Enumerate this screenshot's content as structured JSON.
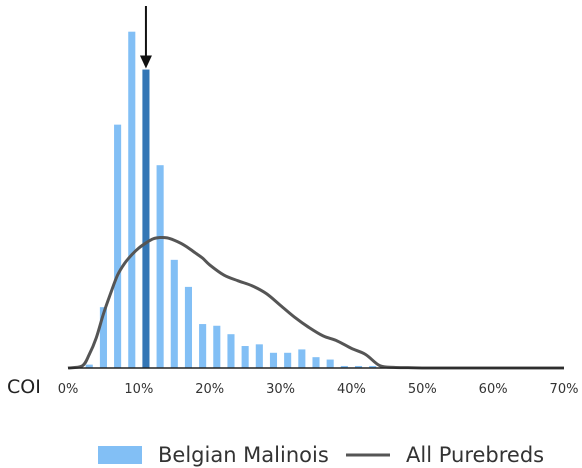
{
  "chart_data": {
    "type": "bar",
    "xlabel": "COI",
    "xlim": [
      0,
      70
    ],
    "x_ticks": [
      "0%",
      "10%",
      "20%",
      "30%",
      "40%",
      "50%",
      "60%",
      "70%"
    ],
    "bar_width": 1,
    "highlight_x": 11,
    "series": [
      {
        "name": "Belgian Malinois",
        "kind": "bar",
        "color": "#82bff5",
        "highlight_color": "#3476b5",
        "x": [
          3,
          5,
          7,
          9,
          11,
          13,
          15,
          17,
          19,
          21,
          23,
          25,
          27,
          29,
          31,
          33,
          35,
          37,
          39,
          41,
          43
        ],
        "values": [
          1.0,
          18.0,
          72.0,
          99.5,
          88.3,
          60.0,
          32.0,
          24.0,
          13.0,
          12.5,
          10.0,
          6.5,
          7.0,
          4.5,
          4.5,
          5.5,
          3.2,
          2.5,
          0.6,
          0.6,
          0.6
        ]
      },
      {
        "name": "All Purebreds",
        "kind": "line",
        "color": "#555555",
        "x": [
          0,
          2,
          3,
          4,
          5,
          6,
          7,
          8,
          9,
          10,
          11,
          12,
          13,
          14,
          15,
          16,
          17,
          18,
          19,
          20,
          22,
          24,
          26,
          28,
          30,
          32,
          34,
          36,
          38,
          40,
          42,
          44,
          46,
          48,
          50,
          55,
          60,
          65,
          70
        ],
        "values": [
          0,
          0.6,
          4.0,
          9.0,
          16.0,
          22.0,
          27.5,
          31.0,
          33.5,
          35.5,
          37.0,
          38.2,
          38.6,
          38.5,
          37.8,
          36.8,
          35.5,
          34.0,
          32.5,
          30.5,
          27.5,
          25.8,
          24.3,
          22.0,
          18.5,
          15.0,
          12.0,
          9.5,
          8.0,
          5.8,
          4.0,
          0.7,
          0.2,
          0.1,
          0,
          0,
          0,
          0,
          0
        ]
      }
    ],
    "legend": "bottom",
    "ylim": [
      0,
      100
    ],
    "grid": false
  }
}
